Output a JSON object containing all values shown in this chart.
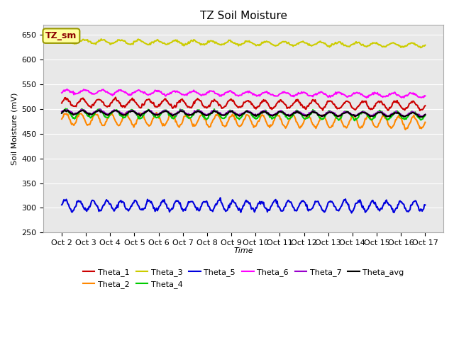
{
  "title": "TZ Soil Moisture",
  "xlabel": "Time",
  "ylabel": "Soil Moisture (mV)",
  "ylim": [
    250,
    670
  ],
  "yticks": [
    250,
    300,
    350,
    400,
    450,
    500,
    550,
    600,
    650
  ],
  "x_labels": [
    "Oct 2",
    "Oct 3",
    "Oct 4",
    "Oct 5",
    "Oct 6",
    "Oct 7",
    "Oct 8",
    "Oct 9",
    "Oct 10",
    "Oct 11",
    "Oct 12",
    "Oct 13",
    "Oct 14",
    "Oct 15",
    "Oct 16",
    "Oct 17"
  ],
  "n_points": 480,
  "series": {
    "Theta_1": {
      "color": "#cc0000",
      "base": 513,
      "amplitude": 8,
      "trend": -0.4,
      "freq": 22,
      "noise": 1.5
    },
    "Theta_2": {
      "color": "#ff8800",
      "base": 480,
      "amplitude": 12,
      "trend": -0.5,
      "freq": 24,
      "noise": 1.5
    },
    "Theta_3": {
      "color": "#cccc00",
      "base": 637,
      "amplitude": 4,
      "trend": -0.5,
      "freq": 20,
      "noise": 1.0
    },
    "Theta_4": {
      "color": "#00cc00",
      "base": 491,
      "amplitude": 8,
      "trend": -0.3,
      "freq": 22,
      "noise": 1.2
    },
    "Theta_5": {
      "color": "#0000dd",
      "base": 305,
      "amplitude": 10,
      "trend": -0.1,
      "freq": 26,
      "noise": 2.0
    },
    "Theta_6": {
      "color": "#ff00ff",
      "base": 535,
      "amplitude": 4,
      "trend": -0.5,
      "freq": 20,
      "noise": 1.0
    },
    "Theta_7": {
      "color": "#9900cc",
      "base": 494,
      "amplitude": 4,
      "trend": -0.3,
      "freq": 22,
      "noise": 1.0
    },
    "Theta_avg": {
      "color": "#000000",
      "base": 493,
      "amplitude": 4,
      "trend": -0.3,
      "freq": 22,
      "noise": 0.8
    }
  },
  "legend_box": {
    "text": "TZ_sm",
    "text_color": "#8b0000",
    "bg_color": "#ffffa0",
    "edge_color": "#999900"
  },
  "background_color": "#e8e8e8",
  "figure_bg": "#ffffff",
  "title_fontsize": 11,
  "axis_label_fontsize": 8,
  "tick_fontsize": 8
}
